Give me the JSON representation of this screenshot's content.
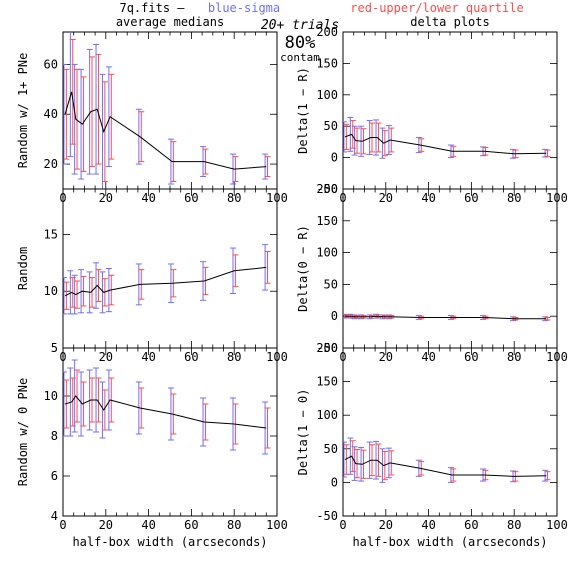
{
  "header": {
    "file_label": "7q.fits  —",
    "blue_label": "blue-sigma",
    "red_label": "red-upper/lower quartile",
    "trials_label": "20+ trials",
    "percent_label": "80%",
    "contam_label": "contam"
  },
  "colors": {
    "blue": "#6f6fff",
    "red": "#ff4d4d",
    "line": "#000000",
    "errorbar": "#a050d0"
  },
  "chart_data": [
    {
      "type": "line",
      "title": "average medians",
      "xlabel": "",
      "ylabel": "Random w/ 1+ PNe",
      "xlim": [
        0,
        100
      ],
      "ylim": [
        10,
        73
      ],
      "xticks": [
        0,
        20,
        40,
        60,
        80,
        100
      ],
      "yticks": [
        20,
        40,
        60
      ],
      "x": [
        1,
        4,
        6,
        9,
        13,
        16,
        19,
        22,
        36,
        51,
        66,
        80,
        95
      ],
      "y": [
        40,
        49,
        38,
        36,
        41,
        42,
        33,
        39,
        31,
        21,
        21,
        18,
        19
      ],
      "sigma": [
        20,
        26,
        22,
        22,
        25,
        26,
        23,
        20,
        11,
        9,
        6,
        6,
        5
      ],
      "quartile": [
        18,
        21,
        20,
        19,
        22,
        22,
        20,
        17,
        10,
        8,
        5,
        5,
        4
      ]
    },
    {
      "type": "line",
      "title": "delta plots",
      "xlabel": "",
      "ylabel": "Delta(1 − R)",
      "xlim": [
        0,
        100
      ],
      "ylim": [
        -50,
        200
      ],
      "xticks": [
        0,
        20,
        40,
        60,
        80,
        100
      ],
      "yticks": [
        -50,
        0,
        50,
        100,
        150,
        200
      ],
      "x": [
        1,
        4,
        6,
        9,
        13,
        16,
        19,
        22,
        36,
        51,
        66,
        80,
        95
      ],
      "y": [
        33,
        37,
        27,
        26,
        32,
        32,
        23,
        28,
        20,
        10,
        10,
        6,
        7
      ],
      "sigma": [
        24,
        27,
        23,
        24,
        27,
        28,
        24,
        23,
        12,
        10,
        7,
        7,
        6
      ],
      "quartile": [
        20,
        22,
        20,
        20,
        23,
        23,
        20,
        19,
        10,
        8,
        6,
        6,
        5
      ]
    },
    {
      "type": "line",
      "title": "",
      "xlabel": "",
      "ylabel": "Random",
      "xlim": [
        0,
        100
      ],
      "ylim": [
        5,
        19
      ],
      "xticks": [
        0,
        20,
        40,
        60,
        80,
        100
      ],
      "yticks": [
        5,
        10,
        15
      ],
      "x": [
        1,
        4,
        6,
        9,
        13,
        16,
        19,
        22,
        36,
        51,
        66,
        80,
        95
      ],
      "y": [
        9.6,
        9.9,
        9.7,
        10.0,
        9.9,
        10.5,
        9.9,
        10.1,
        10.6,
        10.7,
        10.9,
        11.8,
        12.1
      ],
      "sigma": [
        1.6,
        1.9,
        1.7,
        1.9,
        1.8,
        2.0,
        1.8,
        1.9,
        1.8,
        1.7,
        1.7,
        2.0,
        2.0
      ],
      "quartile": [
        1.2,
        1.3,
        1.2,
        1.3,
        1.3,
        1.4,
        1.2,
        1.3,
        1.3,
        1.2,
        1.2,
        1.4,
        1.4
      ]
    },
    {
      "type": "line",
      "title": "",
      "xlabel": "",
      "ylabel": "Delta(0 − R)",
      "xlim": [
        0,
        100
      ],
      "ylim": [
        -50,
        200
      ],
      "xticks": [
        0,
        20,
        40,
        60,
        80,
        100
      ],
      "yticks": [
        -50,
        0,
        50,
        100,
        150,
        200
      ],
      "x": [
        1,
        4,
        6,
        9,
        13,
        16,
        19,
        22,
        36,
        51,
        66,
        80,
        95
      ],
      "y": [
        0,
        0,
        -1,
        -1,
        -1,
        0,
        -1,
        -1,
        -2,
        -2,
        -2,
        -4,
        -4
      ],
      "sigma": [
        3,
        3,
        3,
        3,
        3,
        3,
        3,
        3,
        3,
        3,
        3,
        3,
        3
      ],
      "quartile": [
        2,
        2,
        2,
        2,
        2,
        2,
        2,
        2,
        2,
        2,
        2,
        2,
        2
      ]
    },
    {
      "type": "line",
      "title": "",
      "xlabel": "half-box width (arcseconds)",
      "ylabel": "Random w/ 0 PNe",
      "xlim": [
        0,
        100
      ],
      "ylim": [
        4,
        12.4
      ],
      "xticks": [
        0,
        20,
        40,
        60,
        80,
        100
      ],
      "yticks": [
        4,
        6,
        8,
        10
      ],
      "x": [
        1,
        4,
        6,
        9,
        13,
        16,
        19,
        22,
        36,
        51,
        66,
        80,
        95
      ],
      "y": [
        9.6,
        9.7,
        10.0,
        9.6,
        9.8,
        9.8,
        9.3,
        9.8,
        9.4,
        9.1,
        8.7,
        8.6,
        8.4
      ],
      "sigma": [
        1.6,
        1.7,
        1.8,
        1.6,
        1.5,
        1.6,
        1.4,
        1.5,
        1.3,
        1.3,
        1.2,
        1.3,
        1.3
      ],
      "quartile": [
        1.2,
        1.2,
        1.3,
        1.1,
        1.1,
        1.1,
        1.0,
        1.1,
        1.0,
        1.0,
        0.9,
        1.0,
        1.0
      ]
    },
    {
      "type": "line",
      "title": "",
      "xlabel": "half-box width (arcseconds)",
      "ylabel": "Delta(1 − 0)",
      "xlim": [
        0,
        100
      ],
      "ylim": [
        -50,
        200
      ],
      "xticks": [
        0,
        20,
        40,
        60,
        80,
        100
      ],
      "yticks": [
        -50,
        0,
        50,
        100,
        150,
        200
      ],
      "x": [
        1,
        4,
        6,
        9,
        13,
        16,
        19,
        22,
        36,
        51,
        66,
        80,
        95
      ],
      "y": [
        34,
        39,
        28,
        27,
        33,
        33,
        25,
        29,
        21,
        11,
        11,
        9,
        10
      ],
      "sigma": [
        26,
        27,
        25,
        25,
        27,
        28,
        25,
        22,
        12,
        11,
        9,
        8,
        8
      ],
      "quartile": [
        22,
        23,
        21,
        21,
        23,
        24,
        21,
        18,
        10,
        9,
        7,
        7,
        6
      ]
    }
  ]
}
